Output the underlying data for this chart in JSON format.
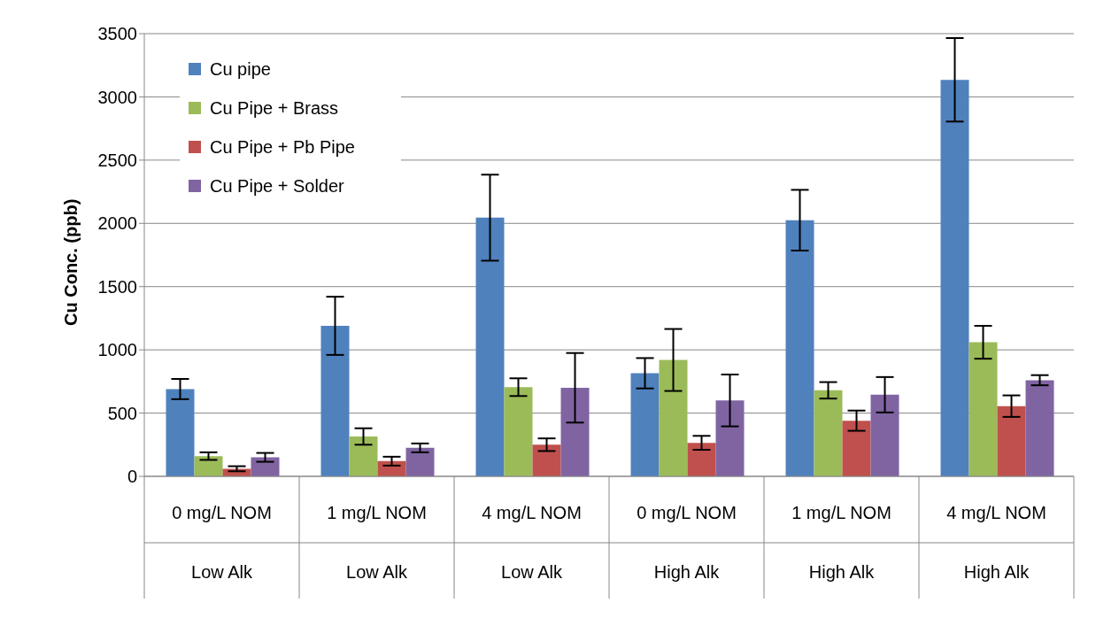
{
  "chart_data": {
    "type": "bar",
    "ylabel": "Cu Conc. (ppb)",
    "categories": [
      "0 mg/L NOM\nLow Alk",
      "1 mg/L NOM\nLow Alk",
      "4 mg/L NOM\nLow Alk",
      "0 mg/L NOM\nHigh Alk",
      "1 mg/L NOM\nHigh Alk",
      "4 mg/L NOM\nHigh Alk"
    ],
    "series": [
      {
        "name": "Cu pipe",
        "color": "#4f81bd",
        "values": [
          690,
          1190,
          2045,
          815,
          2025,
          3135
        ],
        "errors": [
          80,
          230,
          340,
          120,
          240,
          330
        ]
      },
      {
        "name": "Cu Pipe + Brass",
        "color": "#9bbb59",
        "values": [
          160,
          315,
          705,
          920,
          680,
          1060
        ],
        "errors": [
          30,
          65,
          70,
          245,
          65,
          130
        ]
      },
      {
        "name": "Cu Pipe + Pb Pipe",
        "color": "#c0504d",
        "values": [
          60,
          120,
          250,
          265,
          440,
          555
        ],
        "errors": [
          20,
          35,
          50,
          55,
          80,
          85
        ]
      },
      {
        "name": "Cu Pipe + Solder",
        "color": "#8064a2",
        "values": [
          150,
          225,
          700,
          600,
          645,
          760
        ],
        "errors": [
          35,
          35,
          275,
          205,
          140,
          40
        ]
      }
    ],
    "ylim": [
      0,
      3500
    ],
    "yticks": [
      0,
      500,
      1000,
      1500,
      2000,
      2500,
      3000,
      3500
    ],
    "grid": "y",
    "legend": "top left"
  }
}
